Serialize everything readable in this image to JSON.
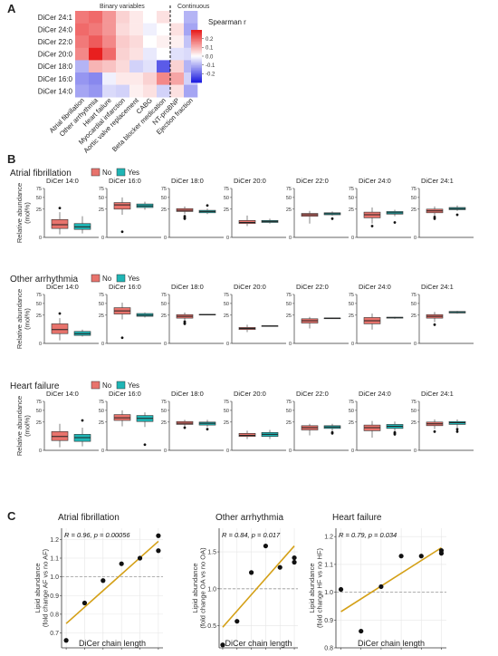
{
  "panels": {
    "A": {
      "letter": "A"
    },
    "B": {
      "letter": "B"
    },
    "C": {
      "letter": "C"
    }
  },
  "chart_data": [
    {
      "type": "heatmap",
      "panel": "A",
      "group_labels": [
        "Binary variables",
        "Continuous"
      ],
      "rows": [
        "DiCer 24:1",
        "DiCer 24:0",
        "DiCer 22:0",
        "DiCer 20:0",
        "DiCer 18:0",
        "DiCer 16:0",
        "DiCer 14:0"
      ],
      "columns": [
        "Atrial fibrillation",
        "Other arrhythmia",
        "Heart failure",
        "Myocardial infarction",
        "Aortic valve replacement",
        "CABG",
        "Beta blocker medication",
        "NT-proBNP",
        "Ejection fraction"
      ],
      "values": [
        [
          0.18,
          0.2,
          0.14,
          0.06,
          0.03,
          0.0,
          0.04,
          0.0,
          -0.1
        ],
        [
          0.2,
          0.18,
          0.14,
          0.05,
          0.03,
          -0.02,
          0.0,
          0.04,
          -0.12
        ],
        [
          0.18,
          0.22,
          0.16,
          0.07,
          0.05,
          0.0,
          0.02,
          0.02,
          -0.08
        ],
        [
          0.16,
          0.32,
          0.2,
          0.06,
          0.04,
          -0.03,
          0.0,
          -0.04,
          -0.05
        ],
        [
          -0.1,
          0.1,
          0.08,
          0.05,
          -0.06,
          -0.04,
          -0.22,
          0.06,
          -0.1
        ],
        [
          -0.14,
          -0.16,
          -0.02,
          0.03,
          0.03,
          0.06,
          0.16,
          0.12,
          -0.06
        ],
        [
          -0.12,
          -0.14,
          -0.05,
          -0.06,
          0.02,
          0.04,
          -0.06,
          0.04,
          -0.12
        ]
      ],
      "legend": {
        "title": "Spearman r",
        "ticks": [
          0.2,
          0.1,
          0.0,
          -0.1,
          -0.2
        ],
        "tick_labels": [
          "0.2",
          "0.1",
          "0.0",
          "-0.1",
          "-0.2"
        ],
        "range": [
          -0.3,
          0.3
        ]
      },
      "colors": {
        "low": "#1f1fe0",
        "mid": "#ffffff",
        "high": "#e81f1f"
      }
    },
    {
      "type": "box",
      "panel": "B",
      "ylabel": "Relative abundance\n(mol%)",
      "y_tick_labels": [
        "0",
        "25",
        "50",
        "75"
      ],
      "y_scale": "sqrt",
      "legend": {
        "no": "No",
        "yes": "Yes"
      },
      "colors": {
        "no": "#e8736c",
        "yes": "#1fb5b5"
      },
      "lipids": [
        "DiCer 14:0",
        "DiCer 16:0",
        "DiCer 18:0",
        "DiCer 20:0",
        "DiCer 22:0",
        "DiCer 24:0",
        "DiCer 24:1"
      ],
      "rows": [
        {
          "title": "Atrial fibrillation",
          "stats": [
            {
              "no": {
                "min": 0.3,
                "q1": 2.5,
                "med": 5,
                "q3": 10,
                "max": 20,
                "outliers": [
                  27
                ]
              },
              "yes": {
                "min": 0.5,
                "q1": 2,
                "med": 3.5,
                "q3": 6,
                "max": 14,
                "outliers": []
              }
            },
            {
              "no": {
                "min": 16,
                "q1": 25,
                "med": 33,
                "q3": 38,
                "max": 50,
                "outliers": [
                  1
                ]
              },
              "yes": {
                "min": 24,
                "q1": 28,
                "med": 31,
                "q3": 35,
                "max": 40,
                "outliers": []
              }
            },
            {
              "no": {
                "min": 17,
                "q1": 21,
                "med": 23,
                "q3": 26,
                "max": 30,
                "outliers": [
                  14,
                  12,
                  11
                ]
              },
              "yes": {
                "min": 17,
                "q1": 19,
                "med": 21,
                "q3": 23,
                "max": 26,
                "outliers": [
                  32
                ]
              }
            },
            {
              "no": {
                "min": 4,
                "q1": 6,
                "med": 7,
                "q3": 9,
                "max": 15,
                "outliers": []
              },
              "yes": {
                "min": 6,
                "q1": 7,
                "med": 8,
                "q3": 9,
                "max": 11,
                "outliers": []
              }
            },
            {
              "no": {
                "min": 6,
                "q1": 14,
                "med": 16,
                "q3": 18,
                "max": 22,
                "outliers": []
              },
              "yes": {
                "min": 15,
                "q1": 16,
                "med": 17.5,
                "q3": 19,
                "max": 21,
                "outliers": [
                  11
                ]
              }
            },
            {
              "no": {
                "min": 6,
                "q1": 12,
                "med": 16,
                "q3": 20,
                "max": 28,
                "outliers": [
                  4
                ]
              },
              "yes": {
                "min": 14,
                "q1": 17,
                "med": 19,
                "q3": 21,
                "max": 24,
                "outliers": [
                  7
                ]
              }
            },
            {
              "no": {
                "min": 14,
                "q1": 19,
                "med": 22,
                "q3": 25,
                "max": 30,
                "outliers": [
                  11,
                  13
                ]
              },
              "yes": {
                "min": 22,
                "q1": 24,
                "med": 26,
                "q3": 28,
                "max": 32,
                "outliers": [
                  16
                ]
              }
            }
          ]
        },
        {
          "title": "Other arrhythmia",
          "stats": [
            {
              "no": {
                "min": 0.3,
                "q1": 3,
                "med": 6,
                "q3": 12,
                "max": 20,
                "outliers": [
                  28
                ]
              },
              "yes": {
                "min": 1.5,
                "q1": 2,
                "med": 3,
                "q3": 4.5,
                "max": 6,
                "outliers": []
              }
            },
            {
              "no": {
                "min": 18,
                "q1": 27,
                "med": 33,
                "q3": 40,
                "max": 52,
                "outliers": [
                  1
                ]
              },
              "yes": {
                "min": 21,
                "q1": 23,
                "med": 25,
                "q3": 28,
                "max": 30,
                "outliers": []
              }
            },
            {
              "no": {
                "min": 17,
                "q1": 20,
                "med": 23,
                "q3": 26,
                "max": 30,
                "outliers": [
                  15,
                  13,
                  12
                ]
              },
              "yes": {
                "min": 25,
                "q1": 25.5,
                "med": 26,
                "q3": 26.5,
                "max": 27,
                "outliers": []
              }
            },
            {
              "no": {
                "min": 4,
                "q1": 6,
                "med": 7,
                "q3": 8,
                "max": 11,
                "outliers": []
              },
              "yes": {
                "min": 9,
                "q1": 9.2,
                "med": 9.5,
                "q3": 9.8,
                "max": 10,
                "outliers": []
              }
            },
            {
              "no": {
                "min": 7,
                "q1": 13,
                "med": 16,
                "q3": 19,
                "max": 22,
                "outliers": []
              },
              "yes": {
                "min": 19.5,
                "q1": 19.8,
                "med": 20,
                "q3": 20.2,
                "max": 20.5,
                "outliers": []
              }
            },
            {
              "no": {
                "min": 6,
                "q1": 12,
                "med": 16,
                "q3": 21,
                "max": 28,
                "outliers": []
              },
              "yes": {
                "min": 19,
                "q1": 20,
                "med": 21,
                "q3": 21.5,
                "max": 22,
                "outliers": []
              }
            },
            {
              "no": {
                "min": 14,
                "q1": 20,
                "med": 23,
                "q3": 26,
                "max": 31,
                "outliers": [
                  11
                ]
              },
              "yes": {
                "min": 28,
                "q1": 29,
                "med": 30,
                "q3": 32,
                "max": 33,
                "outliers": []
              }
            }
          ]
        },
        {
          "title": "Heart failure",
          "stats": [
            {
              "no": {
                "min": 0.3,
                "q1": 3,
                "med": 6,
                "q3": 11,
                "max": 22,
                "outliers": []
              },
              "yes": {
                "min": 0.5,
                "q1": 2.5,
                "med": 5,
                "q3": 8,
                "max": 16,
                "outliers": [
                  28
                ]
              }
            },
            {
              "no": {
                "min": 18,
                "q1": 28,
                "med": 33,
                "q3": 40,
                "max": 50,
                "outliers": []
              },
              "yes": {
                "min": 17,
                "q1": 26,
                "med": 32,
                "q3": 38,
                "max": 45,
                "outliers": [
                  1
                ]
              }
            },
            {
              "no": {
                "min": 17,
                "q1": 21,
                "med": 23,
                "q3": 26,
                "max": 29,
                "outliers": [
                  16
                ]
              },
              "yes": {
                "min": 17,
                "q1": 20,
                "med": 23,
                "q3": 25,
                "max": 29,
                "outliers": [
                  14
                ]
              }
            },
            {
              "no": {
                "min": 4,
                "q1": 6,
                "med": 7,
                "q3": 9,
                "max": 12,
                "outliers": []
              },
              "yes": {
                "min": 4,
                "q1": 6,
                "med": 8,
                "q3": 10,
                "max": 13,
                "outliers": []
              }
            },
            {
              "no": {
                "min": 7,
                "q1": 13,
                "med": 16,
                "q3": 19,
                "max": 22,
                "outliers": []
              },
              "yes": {
                "min": 11,
                "q1": 15,
                "med": 17,
                "q3": 19,
                "max": 22,
                "outliers": [
                  10,
                  9
                ]
              }
            },
            {
              "no": {
                "min": 5,
                "q1": 12,
                "med": 16,
                "q3": 20,
                "max": 27,
                "outliers": []
              },
              "yes": {
                "min": 11,
                "q1": 15,
                "med": 18,
                "q3": 21,
                "max": 26,
                "outliers": [
                  10,
                  9,
                  8
                ]
              }
            },
            {
              "no": {
                "min": 14,
                "q1": 19,
                "med": 22,
                "q3": 25,
                "max": 30,
                "outliers": [
                  11
                ]
              },
              "yes": {
                "min": 16,
                "q1": 21,
                "med": 24,
                "q3": 26,
                "max": 30,
                "outliers": [
                  14,
                  11
                ]
              }
            }
          ]
        }
      ]
    },
    {
      "type": "scatter",
      "panel": "C",
      "xlabel": "DiCer chain length",
      "x_ticks": [
        14,
        16,
        18,
        20,
        22,
        24
      ],
      "line_color": "#d4a017",
      "subplots": [
        {
          "title": "Atrial fibrillation",
          "ylabel": "Lipid abundance\n(fold change AF vs no AF)",
          "stat_label": "R = 0.96, p = 0.00056",
          "ylim": [
            0.62,
            1.26
          ],
          "y_ticks": [
            0.7,
            0.8,
            0.9,
            1.0,
            1.1,
            1.2
          ],
          "y_tick_labels": [
            "0.7",
            "0.8",
            "0.9",
            "1.0",
            "1.1",
            "1.2"
          ],
          "x": [
            14,
            16,
            18,
            20,
            22,
            24,
            24
          ],
          "y": [
            0.66,
            0.86,
            0.98,
            1.07,
            1.1,
            1.14,
            1.22
          ],
          "fit": [
            [
              14,
              0.75
            ],
            [
              24,
              1.19
            ]
          ]
        },
        {
          "title": "Other arrhythmia",
          "ylabel": "Lipid abundance\n(fold change OA vs no OA)",
          "stat_label": "R = 0.84, p = 0.017",
          "ylim": [
            0.2,
            1.82
          ],
          "y_ticks": [
            0.5,
            1.0,
            1.5
          ],
          "y_tick_labels": [
            "0.5",
            "1.0",
            "1.5"
          ],
          "x": [
            14,
            16,
            18,
            20,
            22,
            24,
            24
          ],
          "y": [
            0.24,
            0.56,
            1.22,
            1.58,
            1.29,
            1.36,
            1.42
          ],
          "fit": [
            [
              14,
              0.48
            ],
            [
              24,
              1.58
            ]
          ]
        },
        {
          "title": "Heart failure",
          "ylabel": "Lipid abundance\n(fold change HF vs no HF)",
          "stat_label": "R = 0.79, p = 0.034",
          "ylim": [
            0.8,
            1.23
          ],
          "y_ticks": [
            0.8,
            0.9,
            1.0,
            1.1,
            1.2
          ],
          "y_tick_labels": [
            "0.8",
            "0.9",
            "1.0",
            "1.1",
            "1.2"
          ],
          "x": [
            14,
            16,
            18,
            20,
            22,
            24,
            24
          ],
          "y": [
            1.01,
            0.86,
            1.02,
            1.13,
            1.13,
            1.15,
            1.14
          ],
          "fit": [
            [
              14,
              0.93
            ],
            [
              24,
              1.16
            ]
          ]
        }
      ]
    }
  ]
}
